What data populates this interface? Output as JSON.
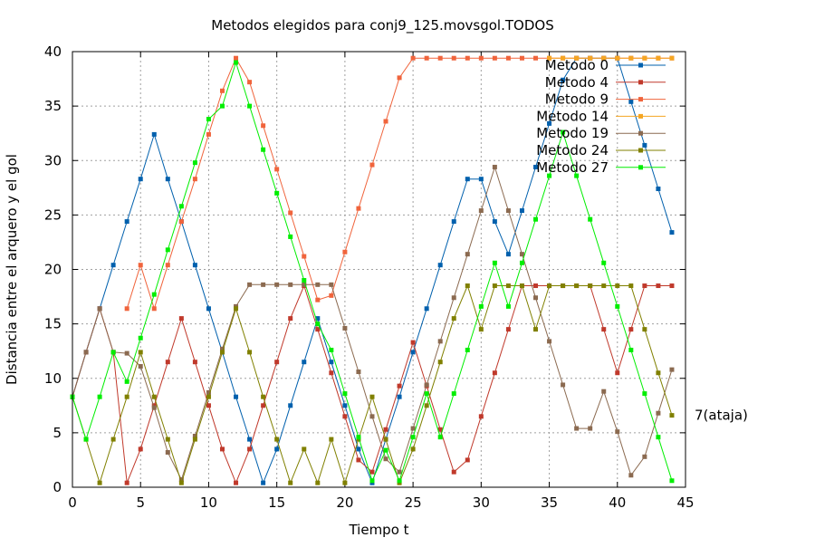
{
  "chart_data": {
    "type": "line",
    "title": "Metodos elegidos para conj9_125.movsgol.TODOS",
    "xlabel": "Tiempo t",
    "ylabel": "Distancia entre el arquero y el gol",
    "xlim": [
      0,
      45
    ],
    "ylim": [
      0,
      40
    ],
    "xticks": [
      "0",
      "5",
      "10",
      "15",
      "20",
      "25",
      "30",
      "35",
      "40",
      "45"
    ],
    "yticks": [
      "0",
      "5",
      "10",
      "15",
      "20",
      "25",
      "30",
      "35",
      "40"
    ],
    "grid": true,
    "legend_position": "top-right",
    "annotation": {
      "text": "7(ataja)",
      "x": 45,
      "y": 6.6
    },
    "series": [
      {
        "name": "Metodo 0",
        "color": "#0060ad",
        "x": [
          0,
          1,
          2,
          3,
          4,
          5,
          6,
          7,
          8,
          9,
          10,
          11,
          12,
          13,
          14,
          15,
          16,
          17,
          18,
          19,
          20,
          21,
          22,
          23,
          24,
          25,
          26,
          27,
          28,
          29,
          30,
          31,
          32,
          33,
          34,
          35,
          36,
          37,
          38,
          39,
          40,
          41,
          42,
          43,
          44
        ],
        "y": [
          8.3,
          12.4,
          16.4,
          20.4,
          24.4,
          28.3,
          32.4,
          28.3,
          24.4,
          20.4,
          16.4,
          12.4,
          8.3,
          4.4,
          0.4,
          3.5,
          7.5,
          11.5,
          15.5,
          11.5,
          7.5,
          3.5,
          0.4,
          4.4,
          8.3,
          12.4,
          16.4,
          20.4,
          24.4,
          28.3,
          28.3,
          24.4,
          21.4,
          25.4,
          29.4,
          33.4,
          37.4,
          39.4,
          39.4,
          39.4,
          39.4,
          35.4,
          31.4,
          27.4,
          23.4
        ]
      },
      {
        "name": "Metodo 4",
        "color": "#c0392b",
        "x": [
          0,
          1,
          2,
          3,
          4,
          5,
          6,
          7,
          8,
          9,
          10,
          11,
          12,
          13,
          14,
          15,
          16,
          17,
          18,
          19,
          20,
          21,
          22,
          23,
          24,
          25,
          26,
          27,
          28,
          29,
          30,
          31,
          32,
          33,
          34,
          35,
          36,
          37,
          38,
          39,
          40,
          41,
          42,
          43,
          44
        ],
        "y": [
          8.3,
          12.4,
          16.4,
          12.4,
          0.4,
          3.5,
          7.5,
          11.5,
          15.5,
          11.5,
          7.5,
          3.5,
          0.4,
          3.5,
          7.5,
          11.5,
          15.5,
          18.5,
          14.5,
          10.5,
          6.5,
          2.5,
          1.4,
          5.3,
          9.3,
          13.3,
          9.3,
          5.3,
          1.4,
          2.5,
          6.5,
          10.5,
          14.5,
          18.5,
          18.5,
          18.5,
          18.5,
          18.5,
          18.5,
          14.5,
          10.5,
          14.5,
          18.5,
          18.5,
          18.5
        ]
      },
      {
        "name": "Metodo 9",
        "color": "#f0643c",
        "x": [
          4,
          5,
          6,
          7,
          8,
          9,
          10,
          11,
          12,
          13,
          14,
          15,
          16,
          17,
          18,
          19,
          20,
          21,
          22,
          23,
          24,
          25,
          26,
          27,
          28,
          29,
          30,
          31,
          32,
          33,
          34,
          35,
          36,
          37,
          38,
          39,
          40,
          41,
          42,
          43,
          44
        ],
        "y": [
          16.4,
          20.4,
          16.4,
          20.4,
          24.4,
          28.3,
          32.4,
          36.4,
          39.4,
          37.2,
          33.2,
          29.2,
          25.2,
          21.2,
          17.2,
          17.6,
          21.6,
          25.6,
          29.6,
          33.6,
          37.6,
          39.4,
          39.4,
          39.4,
          39.4,
          39.4,
          39.4,
          39.4,
          39.4,
          39.4,
          39.4,
          39.4,
          39.4,
          39.4,
          39.4,
          39.4,
          39.4,
          39.4,
          39.4,
          39.4,
          39.4
        ]
      },
      {
        "name": "Metodo 14",
        "color": "#f5a623",
        "x": [
          35,
          36,
          37,
          38,
          39,
          40,
          41,
          42,
          43,
          44
        ],
        "y": [
          39.4,
          39.4,
          39.4,
          39.4,
          39.4,
          39.4,
          39.4,
          39.4,
          39.4,
          39.4
        ]
      },
      {
        "name": "Metodo 19",
        "color": "#8b6a50",
        "x": [
          0,
          1,
          2,
          3,
          4,
          5,
          6,
          7,
          8,
          9,
          10,
          11,
          12,
          13,
          14,
          15,
          16,
          17,
          18,
          19,
          20,
          21,
          22,
          23,
          24,
          25,
          26,
          27,
          28,
          29,
          30,
          31,
          32,
          33,
          34,
          35,
          36,
          37,
          38,
          39,
          40,
          41,
          42,
          43,
          44
        ],
        "y": [
          8.3,
          12.4,
          16.4,
          12.4,
          12.3,
          11.1,
          7.3,
          3.2,
          0.7,
          4.7,
          8.7,
          12.7,
          16.6,
          18.6,
          18.6,
          18.6,
          18.6,
          18.6,
          18.6,
          18.6,
          14.6,
          10.6,
          6.5,
          2.6,
          1.4,
          5.4,
          9.4,
          13.4,
          17.4,
          21.4,
          25.4,
          29.4,
          25.4,
          21.4,
          17.4,
          13.4,
          9.4,
          5.4,
          5.4,
          8.8,
          5.1,
          1.1,
          2.8,
          6.8,
          10.8
        ]
      },
      {
        "name": "Metodo 24",
        "color": "#808000",
        "x": [
          0,
          1,
          2,
          3,
          4,
          5,
          6,
          7,
          8,
          9,
          10,
          11,
          12,
          13,
          14,
          15,
          16,
          17,
          18,
          19,
          20,
          21,
          22,
          23,
          24,
          25,
          26,
          27,
          28,
          29,
          30,
          31,
          32,
          33,
          34,
          35,
          36,
          37,
          38,
          39,
          40,
          41,
          42,
          43,
          44
        ],
        "y": [
          8.3,
          4.4,
          0.4,
          4.4,
          8.3,
          12.4,
          8.3,
          4.4,
          0.4,
          4.4,
          8.3,
          12.4,
          16.4,
          12.4,
          8.3,
          4.4,
          0.4,
          3.5,
          0.4,
          4.4,
          0.4,
          4.4,
          8.3,
          4.4,
          0.4,
          3.5,
          7.5,
          11.5,
          15.5,
          18.5,
          14.5,
          18.5,
          18.5,
          18.5,
          14.5,
          18.5,
          18.5,
          18.5,
          18.5,
          18.5,
          18.5,
          18.5,
          14.5,
          10.5,
          6.6
        ]
      },
      {
        "name": "Metodo 27",
        "color": "#00ee00",
        "x": [
          0,
          1,
          2,
          3,
          4,
          5,
          6,
          7,
          8,
          9,
          10,
          11,
          12,
          13,
          14,
          15,
          16,
          17,
          18,
          19,
          20,
          21,
          22,
          23,
          24,
          25,
          26,
          27,
          28,
          29,
          30,
          31,
          32,
          33,
          34,
          35,
          36,
          37,
          38,
          39,
          40,
          41,
          42,
          43,
          44
        ],
        "y": [
          8.3,
          4.4,
          8.3,
          12.4,
          9.7,
          13.7,
          17.7,
          21.8,
          25.8,
          29.8,
          33.8,
          35.0,
          39.0,
          35.0,
          31.0,
          27.0,
          23.0,
          19.0,
          15.0,
          12.6,
          8.6,
          4.6,
          0.6,
          3.4,
          0.6,
          4.6,
          8.6,
          4.6,
          8.6,
          12.6,
          16.6,
          20.6,
          16.6,
          20.6,
          24.6,
          28.6,
          32.6,
          28.6,
          24.6,
          20.6,
          16.6,
          12.6,
          8.6,
          4.6,
          0.6
        ]
      }
    ]
  }
}
